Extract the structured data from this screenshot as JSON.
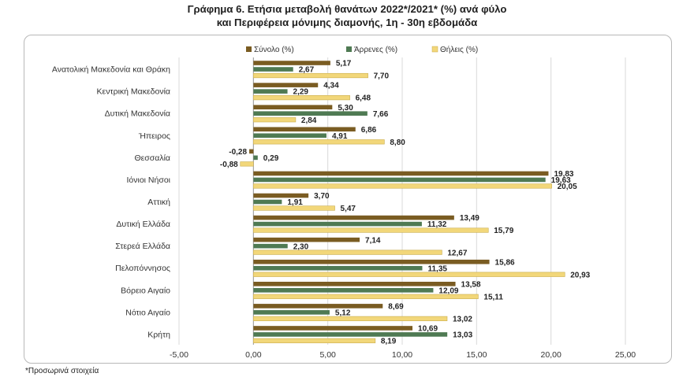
{
  "title_line1": "Γράφημα 6. Ετήσια μεταβολή θανάτων 2022*/2021* (%) ανά φύλο",
  "title_line2": "και Περιφέρεια μόνιμης διαμονής, 1η - 30η εβδομάδα",
  "footnote": "*Προσωρινά στοιχεία",
  "chart_data": {
    "type": "bar",
    "orientation": "horizontal",
    "categories": [
      "Ανατολική Μακεδονία και Θράκη",
      "Κεντρική Μακεδονία",
      "Δυτική Μακεδονία",
      "Ήπειρος",
      "Θεσσαλία",
      "Ιόνιοι Νήσοι",
      "Αττική",
      "Δυτική Ελλάδα",
      "Στερεά Ελλάδα",
      "Πελοπόννησος",
      "Βόρειο Αιγαίο",
      "Νότιο Αιγαίο",
      "Κρήτη"
    ],
    "series": [
      {
        "name": "Σύνολο (%)",
        "color": "#7a5c22",
        "values": [
          5.17,
          4.34,
          5.3,
          6.86,
          -0.28,
          19.83,
          3.7,
          13.49,
          7.14,
          15.86,
          13.58,
          8.69,
          10.69
        ],
        "labels": [
          "5,17",
          "4,34",
          "5,30",
          "6,86",
          "-0,28",
          "19,83",
          "3,70",
          "13,49",
          "7,14",
          "15,86",
          "13,58",
          "8,69",
          "10,69"
        ]
      },
      {
        "name": "Άρρενες (%)",
        "color": "#4f7a53",
        "values": [
          2.67,
          2.29,
          7.66,
          4.91,
          0.29,
          19.63,
          1.91,
          11.32,
          2.3,
          11.35,
          12.09,
          5.12,
          13.03
        ],
        "labels": [
          "2,67",
          "2,29",
          "7,66",
          "4,91",
          "0,29",
          "19,63",
          "1,91",
          "11,32",
          "2,30",
          "11,35",
          "12,09",
          "5,12",
          "13,03"
        ]
      },
      {
        "name": "Θήλεις (%)",
        "color": "#f2d77a",
        "values": [
          7.7,
          6.48,
          2.84,
          8.8,
          -0.88,
          20.05,
          5.47,
          15.79,
          12.67,
          20.93,
          15.11,
          13.02,
          8.19
        ],
        "labels": [
          "7,70",
          "6,48",
          "2,84",
          "8,80",
          "-0,88",
          "20,05",
          "5,47",
          "15,79",
          "12,67",
          "20,93",
          "15,11",
          "13,02",
          "8,19"
        ]
      }
    ],
    "xlim": [
      -5,
      25
    ],
    "xticks": [
      "-5,00",
      "0,00",
      "5,00",
      "10,00",
      "15,00",
      "20,00",
      "25,00"
    ],
    "xtick_values": [
      -5,
      0,
      5,
      10,
      15,
      20,
      25
    ],
    "grid": true,
    "legend_position": "top-right"
  }
}
